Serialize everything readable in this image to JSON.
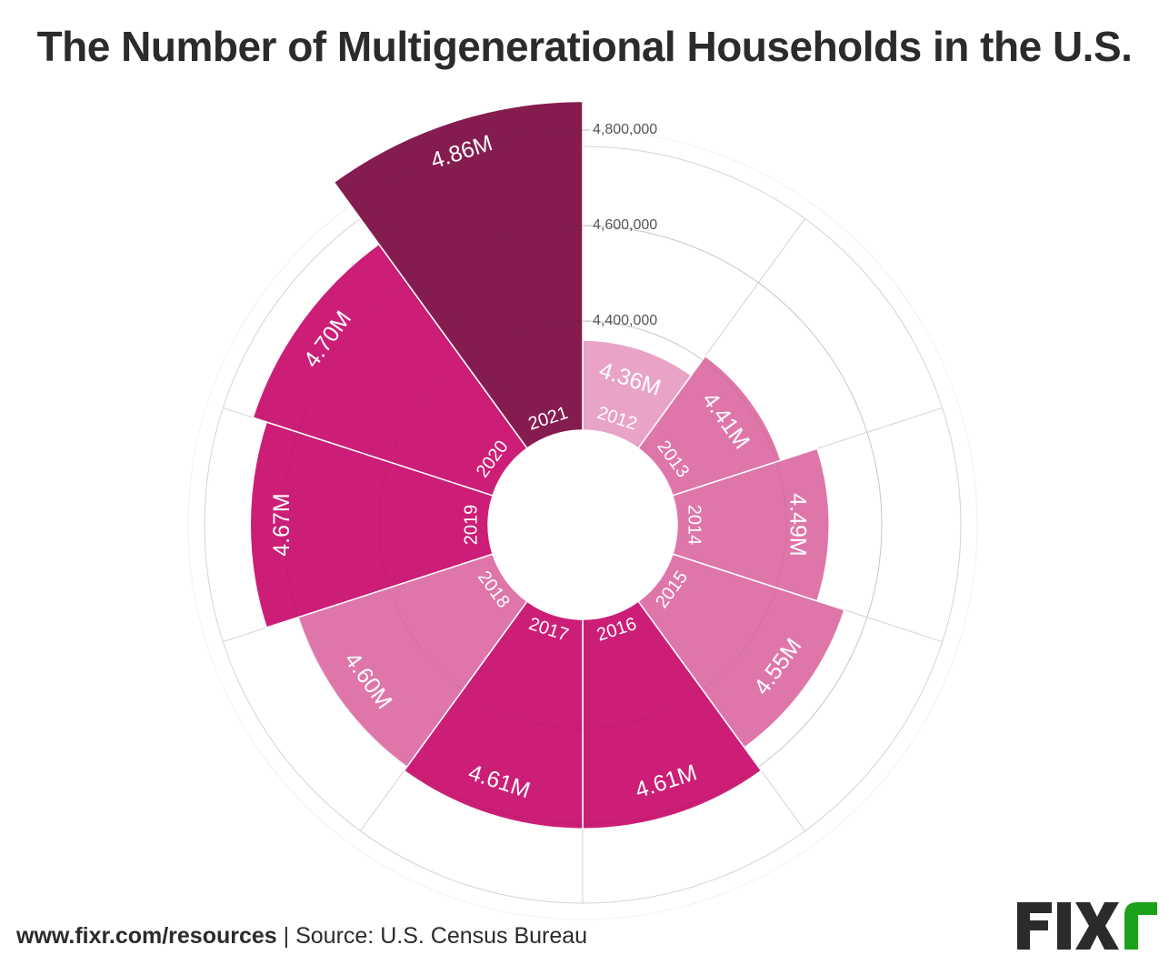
{
  "title": "The Number of Multigenerational Households in the U.S.",
  "footer": {
    "url": "www.fixr.com/resources",
    "separator": " | ",
    "source": "Source: U.S. Census Bureau"
  },
  "logo": {
    "text_dark": "FIX",
    "text_accent": "r",
    "dark_color": "#2b2b2b",
    "accent_color": "#1aa31a"
  },
  "colors": {
    "light": "#e9a3c7",
    "medium": "#df76aa",
    "bright": "#cc1e76",
    "dark": "#851c4f",
    "grid": "#d4d4d4",
    "axis_text": "#555555"
  },
  "chart_data": {
    "type": "polar-bar",
    "title": "The Number of Multigenerational Households in the U.S.",
    "categories": [
      "2012",
      "2013",
      "2014",
      "2015",
      "2016",
      "2017",
      "2018",
      "2019",
      "2020",
      "2021"
    ],
    "values": [
      4360000,
      4410000,
      4490000,
      4550000,
      4610000,
      4610000,
      4600000,
      4670000,
      4700000,
      4860000
    ],
    "labels": [
      "4.36M",
      "4.41M",
      "4.49M",
      "4.55M",
      "4.61M",
      "4.61M",
      "4.60M",
      "4.67M",
      "4.70M",
      "4.86M"
    ],
    "bar_colors": [
      "light",
      "medium",
      "medium",
      "medium",
      "bright",
      "bright",
      "medium",
      "bright",
      "bright",
      "dark"
    ],
    "radial_ticks": [
      4400000,
      4600000,
      4800000
    ],
    "radial_tick_labels": [
      "4,400,000",
      "4,600,000",
      "4,800,000"
    ],
    "xlabel": "",
    "ylabel": "",
    "grid": true,
    "legend": "none"
  }
}
